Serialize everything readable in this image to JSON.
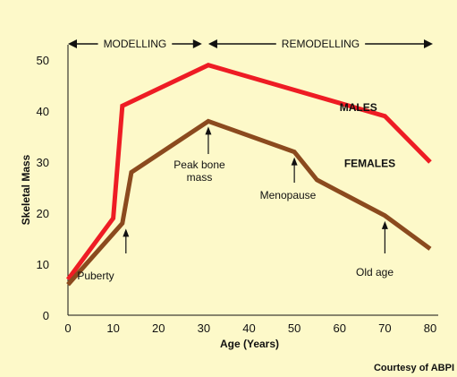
{
  "chart_data": {
    "type": "line",
    "title": "",
    "xlabel": "Age (Years)",
    "ylabel": "Skeletal Mass",
    "xlim": [
      0,
      80
    ],
    "ylim": [
      0,
      50
    ],
    "x_ticks": [
      0,
      10,
      20,
      30,
      40,
      50,
      60,
      70,
      80
    ],
    "y_ticks": [
      0,
      10,
      20,
      30,
      40,
      50
    ],
    "grid": false,
    "series": [
      {
        "name": "MALES",
        "color": "#ee1c24",
        "points": [
          [
            0,
            7
          ],
          [
            10,
            19
          ],
          [
            12,
            41
          ],
          [
            31,
            49
          ],
          [
            70,
            39
          ],
          [
            80,
            30
          ]
        ]
      },
      {
        "name": "FEMALES",
        "color": "#8b4a1e",
        "points": [
          [
            0,
            6
          ],
          [
            12,
            18
          ],
          [
            14,
            28
          ],
          [
            31,
            38
          ],
          [
            50,
            32
          ],
          [
            55,
            26.5
          ],
          [
            70,
            19.5
          ],
          [
            80,
            13
          ]
        ]
      }
    ],
    "phases": [
      {
        "label": "MODELLING",
        "from": 0,
        "to": 29
      },
      {
        "label": "REMODELLING",
        "from": 31,
        "to": 80
      }
    ],
    "annotations": [
      {
        "lines": [
          "Puberty"
        ],
        "x": 12,
        "y": 18
      },
      {
        "lines": [
          "Peak bone",
          "mass"
        ],
        "x": 31,
        "y": 38
      },
      {
        "lines": [
          "Menopause"
        ],
        "x": 50,
        "y": 32
      },
      {
        "lines": [
          "Old age"
        ],
        "x": 70,
        "y": 19.5
      }
    ]
  },
  "credit": "Courtesy of ABPI"
}
